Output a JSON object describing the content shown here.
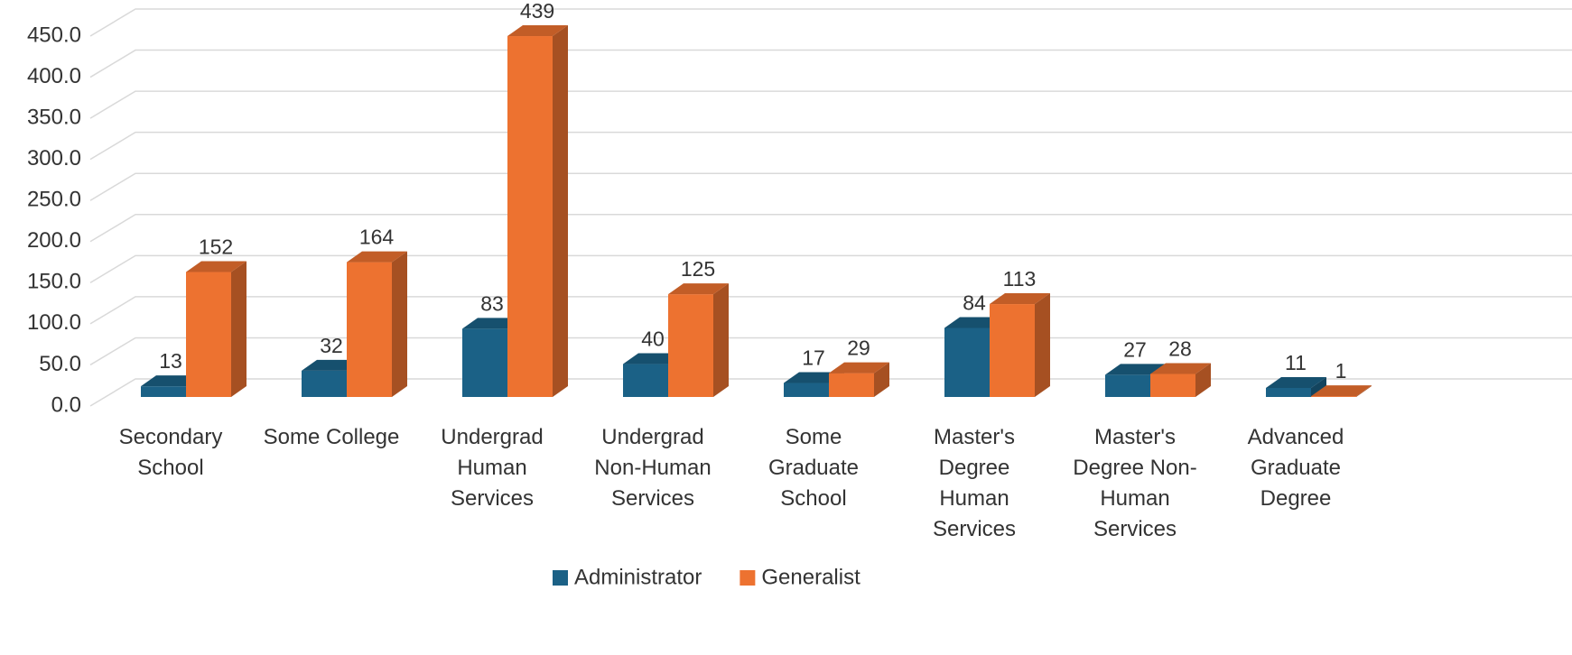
{
  "chart_data": {
    "type": "bar3d",
    "categories": [
      "Secondary School",
      "Some College",
      "Undergrad Human Services",
      "Undergrad Non-Human Services",
      "Some Graduate School",
      "Master's Degree Human Services",
      "Master's Degree Non-Human Services",
      "Advanced Graduate Degree"
    ],
    "series": [
      {
        "name": "Administrator",
        "color": "#1b6186",
        "values": [
          13,
          32,
          83,
          40,
          17,
          84,
          27,
          11
        ]
      },
      {
        "name": "Generalist",
        "color": "#ed7230",
        "values": [
          152,
          164,
          439,
          125,
          29,
          113,
          28,
          1
        ]
      }
    ],
    "ylim": [
      0,
      500
    ],
    "yticks": [
      {
        "value": 0,
        "label": "0.0"
      },
      {
        "value": 50,
        "label": "50.0"
      },
      {
        "value": 100,
        "label": "100.0"
      },
      {
        "value": 150,
        "label": "150.0"
      },
      {
        "value": 200,
        "label": "200.0"
      },
      {
        "value": 250,
        "label": "250.0"
      },
      {
        "value": 300,
        "label": "300.0"
      },
      {
        "value": 350,
        "label": "350.0"
      },
      {
        "value": 400,
        "label": "400.0"
      },
      {
        "value": 450,
        "label": "450.0"
      }
    ],
    "grid": true,
    "legend": "bottom"
  }
}
